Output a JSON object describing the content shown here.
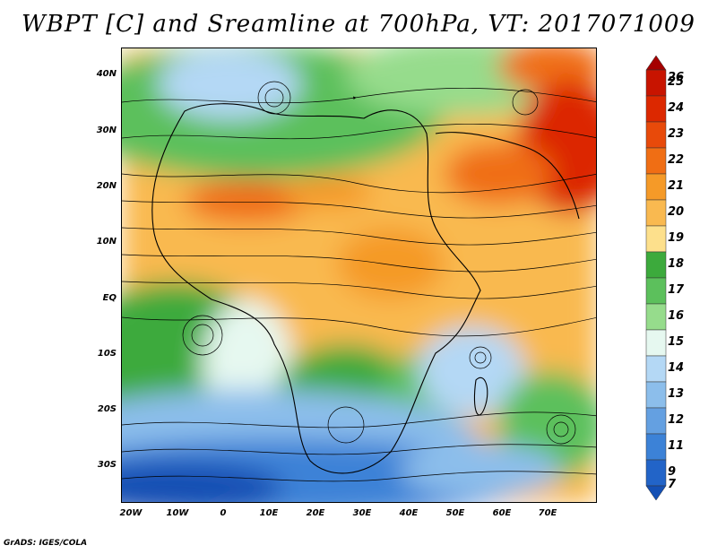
{
  "title": "WBPT [C] and Sreamline at 700hPa, VT: 2017071009",
  "credit": "GrADS: IGES/COLA",
  "lat_labels": [
    "40N",
    "30N",
    "20N",
    "10N",
    "EQ",
    "10S",
    "20S",
    "30S"
  ],
  "lon_labels": [
    "20W",
    "10W",
    "0",
    "10E",
    "20E",
    "30E",
    "40E",
    "50E",
    "60E",
    "70E"
  ],
  "colorbar": {
    "labels": [
      "26",
      "25",
      "24",
      "23",
      "22",
      "21",
      "20",
      "19",
      "18",
      "17",
      "16",
      "15",
      "14",
      "13",
      "12",
      "11",
      "9",
      "7"
    ],
    "colors": [
      "#a50000",
      "#c81400",
      "#dc2800",
      "#e84a0a",
      "#f06e14",
      "#f59a28",
      "#f9b950",
      "#fde08c",
      "#3caa3c",
      "#5cc05c",
      "#96dc8c",
      "#e6f8f0",
      "#b4d8f5",
      "#8cbeeb",
      "#64a0e1",
      "#3c82d7",
      "#2264c8",
      "#1450b4"
    ]
  },
  "map": {
    "lon_range": [
      -22,
      80
    ],
    "lat_range": [
      -37,
      45
    ],
    "field": "wet-bulb potential temperature",
    "units": "C",
    "level": "700hPa",
    "valid_time": "2017071009"
  }
}
